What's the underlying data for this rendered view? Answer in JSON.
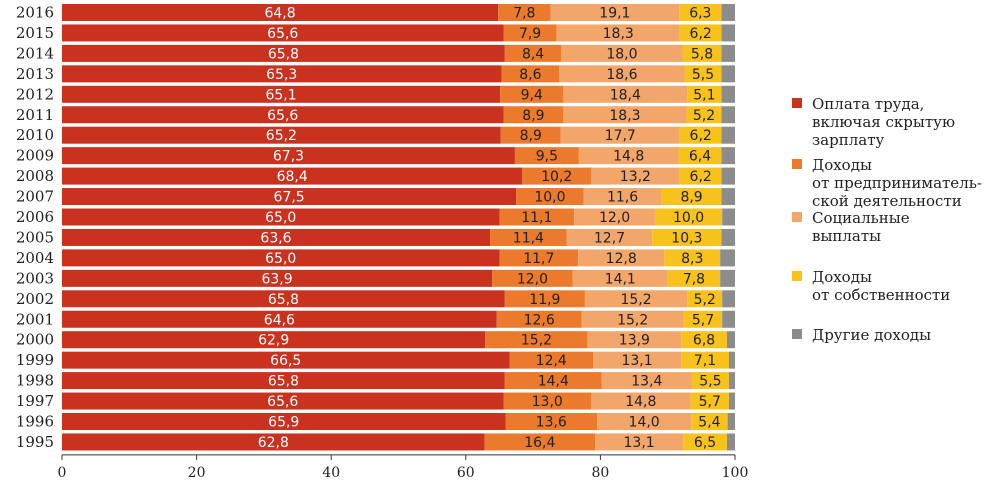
{
  "chart_data": {
    "type": "bar",
    "orientation": "horizontal",
    "stacked": true,
    "categories": [
      "2016",
      "2015",
      "2014",
      "2013",
      "2012",
      "2011",
      "2010",
      "2009",
      "2008",
      "2007",
      "2006",
      "2005",
      "2004",
      "2003",
      "2002",
      "2001",
      "2000",
      "1999",
      "1998",
      "1997",
      "1996",
      "1995"
    ],
    "series": [
      {
        "name": "Оплата труда, включая скрытую зарплату",
        "color": "#c8321f",
        "values": [
          64.8,
          65.6,
          65.8,
          65.3,
          65.1,
          65.6,
          65.2,
          67.3,
          68.4,
          67.5,
          65.0,
          63.6,
          65.0,
          63.9,
          65.8,
          64.6,
          62.9,
          66.5,
          65.8,
          65.6,
          65.9,
          62.8
        ],
        "labels": [
          "64,8",
          "65,6",
          "65,8",
          "65,3",
          "65,1",
          "65,6",
          "65,2",
          "67,3",
          "68,4",
          "67,5",
          "65,0",
          "63,6",
          "65,0",
          "63,9",
          "65,8",
          "64,6",
          "62,9",
          "66,5",
          "65,8",
          "65,6",
          "65,9",
          "62,8"
        ]
      },
      {
        "name": "Доходы от предпринимательской деятельности",
        "color": "#ec7a2c",
        "values": [
          7.8,
          7.9,
          8.4,
          8.6,
          9.4,
          8.9,
          8.9,
          9.5,
          10.2,
          10.0,
          11.1,
          11.4,
          11.7,
          12.0,
          11.9,
          12.6,
          15.2,
          12.4,
          14.4,
          13.0,
          13.6,
          16.4
        ],
        "labels": [
          "7,8",
          "7,9",
          "8,4",
          "8,6",
          "9,4",
          "8,9",
          "8,9",
          "9,5",
          "10,2",
          "10,0",
          "11,1",
          "11,4",
          "11,7",
          "12,0",
          "11,9",
          "12,6",
          "15,2",
          "12,4",
          "14,4",
          "13,0",
          "13,6",
          "16,4"
        ]
      },
      {
        "name": "Социальные выплаты",
        "color": "#f3a66a",
        "values": [
          19.1,
          18.3,
          18.0,
          18.6,
          18.4,
          18.3,
          17.7,
          14.8,
          13.2,
          11.6,
          12.0,
          12.7,
          12.8,
          14.1,
          15.2,
          15.2,
          13.9,
          13.1,
          13.4,
          14.8,
          14.0,
          13.1
        ],
        "labels": [
          "19,1",
          "18,3",
          "18,0",
          "18,6",
          "18,4",
          "18,3",
          "17,7",
          "14,8",
          "13,2",
          "11,6",
          "12,0",
          "12,7",
          "12,8",
          "14,1",
          "15,2",
          "15,2",
          "13,9",
          "13,1",
          "13,4",
          "14,8",
          "14,0",
          "13,1"
        ]
      },
      {
        "name": "Доходы от собственности",
        "color": "#f8c21c",
        "values": [
          6.3,
          6.2,
          5.8,
          5.5,
          5.1,
          5.2,
          6.2,
          6.4,
          6.2,
          8.9,
          10.0,
          10.3,
          8.3,
          7.8,
          5.2,
          5.7,
          6.8,
          7.1,
          5.5,
          5.7,
          5.4,
          6.5
        ],
        "labels": [
          "6,3",
          "6,2",
          "5,8",
          "5,5",
          "5,1",
          "5,2",
          "6,2",
          "6,4",
          "6,2",
          "8,9",
          "10,0",
          "10,3",
          "8,3",
          "7,8",
          "5,2",
          "5,7",
          "6,8",
          "7,1",
          "5,5",
          "5,7",
          "5,4",
          "6,5"
        ]
      },
      {
        "name": "Другие доходы",
        "color": "#8c8c8c",
        "values": [
          2.0,
          2.0,
          2.0,
          2.0,
          2.0,
          2.0,
          2.0,
          2.0,
          2.0,
          2.0,
          1.9,
          2.0,
          2.2,
          2.2,
          1.9,
          1.9,
          1.2,
          0.9,
          0.9,
          0.9,
          1.1,
          1.2
        ]
      }
    ],
    "xlim": [
      0,
      100
    ],
    "xticks": [
      "0",
      "20",
      "40",
      "60",
      "80",
      "100"
    ],
    "legend": [
      {
        "lines": [
          "Оплата труда,",
          "включая скрытую",
          "зарплату"
        ],
        "color": "#c8321f"
      },
      {
        "lines": [
          "Доходы",
          "от предприниматель-",
          "ской деятельности"
        ],
        "color": "#ec7a2c"
      },
      {
        "lines": [
          "Социальные",
          "выплаты"
        ],
        "color": "#f3a66a"
      },
      {
        "lines": [
          "Доходы",
          "от собственности"
        ],
        "color": "#f8c21c"
      },
      {
        "lines": [
          "Другие доходы"
        ],
        "color": "#8c8c8c"
      }
    ],
    "legend_position": "right",
    "grid": false
  }
}
